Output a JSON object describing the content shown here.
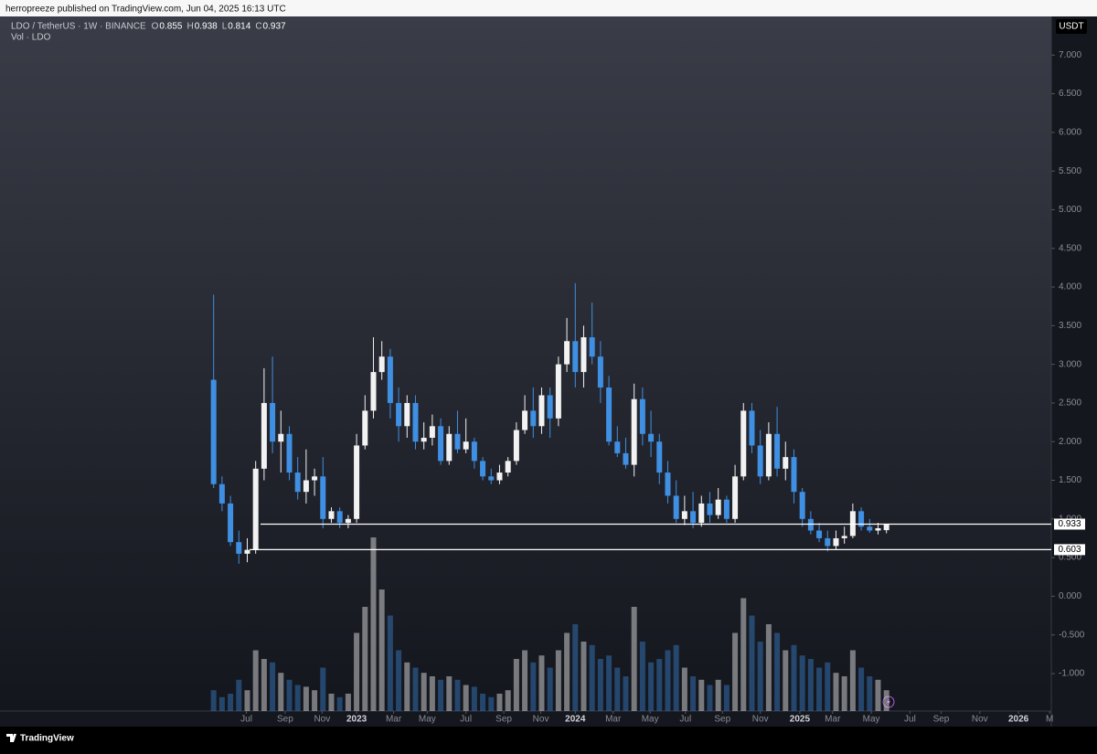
{
  "header": {
    "published": "herropreeze published on TradingView.com, Jun 04, 2025 16:13 UTC"
  },
  "footer": {
    "brand": "TradingView"
  },
  "chart_data": {
    "type": "candlestick",
    "symbol": "LDO / TetherUS · 1W · BINANCE",
    "ohlc": [
      {
        "label": "O",
        "value": 0.855
      },
      {
        "label": "H",
        "value": 0.938
      },
      {
        "label": "L",
        "value": 0.814
      },
      {
        "label": "C",
        "value": 0.937
      }
    ],
    "volume_label": "Vol · LDO",
    "currency": "USDT",
    "up_color": "#f2f2f2",
    "down_color": "#3f8fe3",
    "candles": {
      "open": [
        2.8,
        1.45,
        1.2,
        0.7,
        0.55,
        0.6,
        1.65,
        2.5,
        2.0,
        2.1,
        1.6,
        1.35,
        1.5,
        1.55,
        1.0,
        1.1,
        0.95,
        1.0,
        1.95,
        2.4,
        2.9,
        3.1,
        2.5,
        2.2,
        2.5,
        2.0,
        2.05,
        2.2,
        1.75,
        2.1,
        1.9,
        2.0,
        1.75,
        1.55,
        1.5,
        1.6,
        1.75,
        2.15,
        2.4,
        2.2,
        2.6,
        2.3,
        3.0,
        3.3,
        2.9,
        3.35,
        3.1,
        2.7,
        2.0,
        1.85,
        1.7,
        2.55,
        2.1,
        2.0,
        1.6,
        1.3,
        1.0,
        1.1,
        0.95,
        1.2,
        1.05,
        1.25,
        1.0,
        1.55,
        2.4,
        1.95,
        1.55,
        2.1,
        1.65,
        1.8,
        1.35,
        1.0,
        0.85,
        0.75,
        0.65,
        0.75,
        0.78,
        1.1,
        0.9,
        0.85,
        0.855
      ],
      "high": [
        3.9,
        1.55,
        1.3,
        0.85,
        0.75,
        1.75,
        2.95,
        3.1,
        2.4,
        2.2,
        1.8,
        1.9,
        1.65,
        1.8,
        1.15,
        1.15,
        1.05,
        2.1,
        2.6,
        3.35,
        3.3,
        3.2,
        2.7,
        2.6,
        2.6,
        2.25,
        2.35,
        2.3,
        2.2,
        2.4,
        2.3,
        2.05,
        1.8,
        1.65,
        1.7,
        1.8,
        2.25,
        2.6,
        2.7,
        2.7,
        2.7,
        3.1,
        3.6,
        4.05,
        3.5,
        3.8,
        3.3,
        2.85,
        2.2,
        2.05,
        2.75,
        2.7,
        2.4,
        2.1,
        1.75,
        1.5,
        1.3,
        1.35,
        1.3,
        1.35,
        1.4,
        1.3,
        1.7,
        2.5,
        2.5,
        2.15,
        2.25,
        2.45,
        2.0,
        1.9,
        1.4,
        1.1,
        0.95,
        0.85,
        0.85,
        0.9,
        1.2,
        1.15,
        1.0,
        0.95,
        0.938
      ],
      "low": [
        1.4,
        1.1,
        0.65,
        0.42,
        0.44,
        0.55,
        1.5,
        1.85,
        1.6,
        1.5,
        1.25,
        1.2,
        1.3,
        0.88,
        0.95,
        0.88,
        0.88,
        0.95,
        1.9,
        2.3,
        2.8,
        2.3,
        2.0,
        2.05,
        1.9,
        1.9,
        1.95,
        1.7,
        1.7,
        1.85,
        1.85,
        1.65,
        1.5,
        1.45,
        1.45,
        1.55,
        1.7,
        2.1,
        2.05,
        2.1,
        2.05,
        2.2,
        2.9,
        2.7,
        2.7,
        3.0,
        2.5,
        1.95,
        1.8,
        1.65,
        1.55,
        1.95,
        1.8,
        1.45,
        1.2,
        0.95,
        0.92,
        0.88,
        0.9,
        0.95,
        1.0,
        0.95,
        0.95,
        1.5,
        1.85,
        1.45,
        1.5,
        1.55,
        1.5,
        1.2,
        0.9,
        0.8,
        0.7,
        0.58,
        0.6,
        0.68,
        0.75,
        0.85,
        0.82,
        0.8,
        0.814
      ],
      "close": [
        1.45,
        1.2,
        0.7,
        0.55,
        0.6,
        1.65,
        2.5,
        2.0,
        2.1,
        1.6,
        1.35,
        1.5,
        1.55,
        1.0,
        1.1,
        0.95,
        1.0,
        1.95,
        2.4,
        2.9,
        3.1,
        2.5,
        2.2,
        2.5,
        2.0,
        2.05,
        2.2,
        1.75,
        2.1,
        1.9,
        2.0,
        1.75,
        1.55,
        1.5,
        1.6,
        1.75,
        2.15,
        2.4,
        2.2,
        2.6,
        2.3,
        3.0,
        3.3,
        2.9,
        3.35,
        3.1,
        2.7,
        2.0,
        1.85,
        1.7,
        2.55,
        2.1,
        2.0,
        1.6,
        1.3,
        1.0,
        1.1,
        0.95,
        1.2,
        1.05,
        1.25,
        1.0,
        1.55,
        2.4,
        1.95,
        1.55,
        2.1,
        1.65,
        1.8,
        1.35,
        1.0,
        0.85,
        0.75,
        0.65,
        0.75,
        0.78,
        1.1,
        0.9,
        0.85,
        0.88,
        0.937
      ],
      "volume": [
        12,
        8,
        10,
        18,
        12,
        35,
        30,
        28,
        22,
        18,
        15,
        14,
        12,
        25,
        10,
        8,
        10,
        45,
        60,
        100,
        70,
        55,
        35,
        28,
        25,
        22,
        20,
        18,
        20,
        18,
        15,
        14,
        10,
        8,
        10,
        12,
        30,
        35,
        28,
        32,
        25,
        35,
        45,
        50,
        40,
        38,
        30,
        32,
        25,
        20,
        60,
        40,
        28,
        30,
        35,
        38,
        25,
        20,
        18,
        15,
        18,
        15,
        45,
        65,
        55,
        40,
        50,
        45,
        35,
        38,
        32,
        30,
        25,
        28,
        22,
        20,
        35,
        25,
        20,
        18,
        12
      ]
    },
    "levels": [
      0.933,
      0.603
    ],
    "ylim": [
      -1.485,
      7.5
    ],
    "yticks": [
      {
        "value": -1,
        "label": "-1.000"
      },
      {
        "value": -0.5,
        "label": "-0.500"
      },
      {
        "value": 0,
        "label": "0.000"
      },
      {
        "value": 0.5,
        "label": "0.500"
      },
      {
        "value": 1,
        "label": "1.000"
      },
      {
        "value": 1.5,
        "label": "1.500"
      },
      {
        "value": 2,
        "label": "2.000"
      },
      {
        "value": 2.5,
        "label": "2.500"
      },
      {
        "value": 3,
        "label": "3.000"
      },
      {
        "value": 3.5,
        "label": "3.500"
      },
      {
        "value": 4,
        "label": "4.000"
      },
      {
        "value": 4.5,
        "label": "4.500"
      },
      {
        "value": 5,
        "label": "5.000"
      },
      {
        "value": 5.5,
        "label": "5.500"
      },
      {
        "value": 6,
        "label": "6.000"
      },
      {
        "value": 6.5,
        "label": "6.500"
      },
      {
        "value": 7,
        "label": "7.000"
      }
    ],
    "xlim": [
      -25.4,
      99.6
    ],
    "xticks": [
      {
        "value": 3.9,
        "label": "Jul"
      },
      {
        "value": 8.5,
        "label": "Sep"
      },
      {
        "value": 12.9,
        "label": "Nov"
      },
      {
        "value": 17.0,
        "label": "2023"
      },
      {
        "value": 21.4,
        "label": "Mar"
      },
      {
        "value": 25.4,
        "label": "May"
      },
      {
        "value": 30.0,
        "label": "Jul"
      },
      {
        "value": 34.5,
        "label": "Sep"
      },
      {
        "value": 38.9,
        "label": "Nov"
      },
      {
        "value": 43.0,
        "label": "2024"
      },
      {
        "value": 47.5,
        "label": "Mar"
      },
      {
        "value": 51.9,
        "label": "May"
      },
      {
        "value": 56.1,
        "label": "Jul"
      },
      {
        "value": 60.5,
        "label": "Sep"
      },
      {
        "value": 65.0,
        "label": "Nov"
      },
      {
        "value": 69.7,
        "label": "2025"
      },
      {
        "value": 73.6,
        "label": "Mar"
      },
      {
        "value": 78.2,
        "label": "May"
      },
      {
        "value": 82.8,
        "label": "Jul"
      },
      {
        "value": 86.5,
        "label": "Sep"
      },
      {
        "value": 91.1,
        "label": "Nov"
      },
      {
        "value": 95.7,
        "label": "2026"
      },
      {
        "value": 99.4,
        "label": "M"
      }
    ]
  }
}
